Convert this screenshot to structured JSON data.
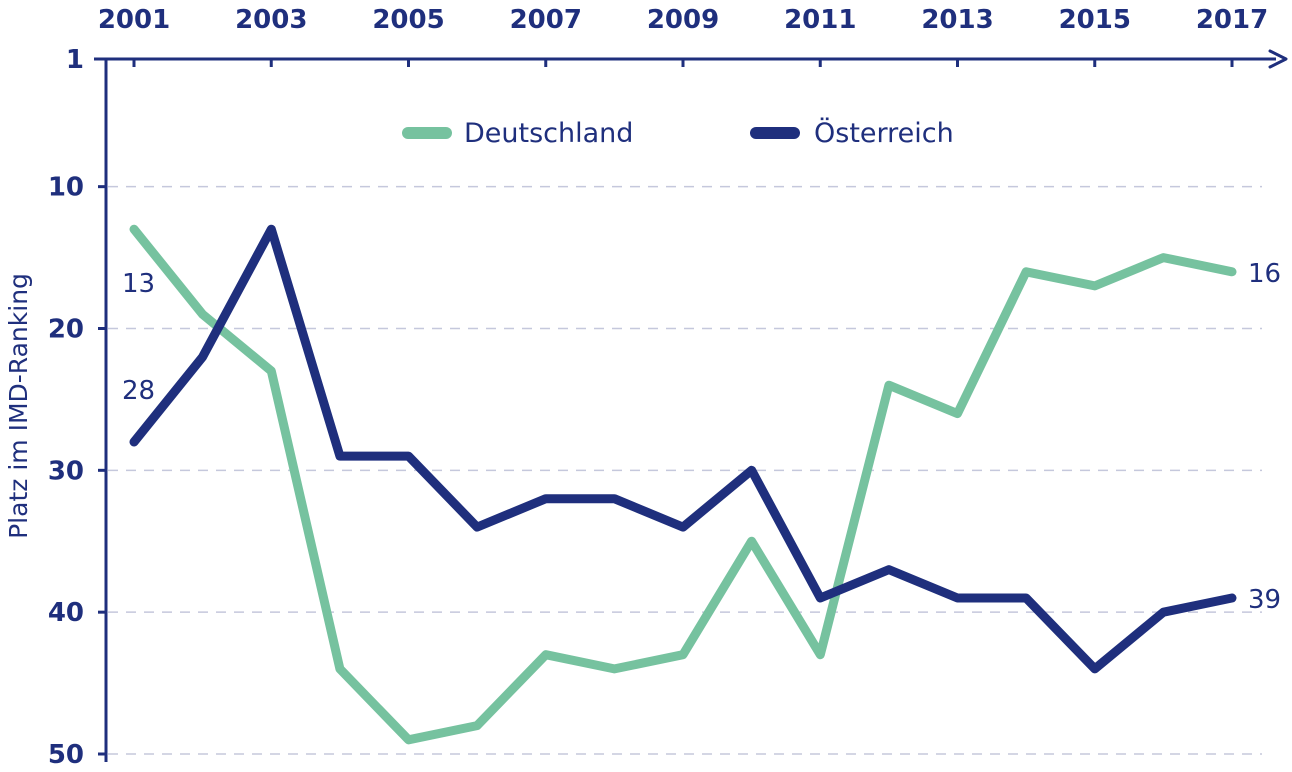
{
  "chart_data": {
    "type": "line",
    "title": "",
    "xlabel": "",
    "ylabel": "Platz im IMD-Ranking",
    "x": [
      2001,
      2002,
      2003,
      2004,
      2005,
      2006,
      2007,
      2008,
      2009,
      2010,
      2011,
      2012,
      2013,
      2014,
      2015,
      2016,
      2017
    ],
    "x_ticks": [
      2001,
      2003,
      2005,
      2007,
      2009,
      2011,
      2013,
      2015,
      2017
    ],
    "xlim": [
      2001,
      2017
    ],
    "y_ticks": [
      1,
      10,
      20,
      30,
      40,
      50
    ],
    "ylim": [
      1,
      50
    ],
    "y_inverted": true,
    "grid": "horizontal-dashed",
    "legend_position": "top-center",
    "series": [
      {
        "name": "Deutschland",
        "color": "#76c29f",
        "values": [
          13,
          19,
          23,
          44,
          49,
          48,
          43,
          44,
          43,
          35,
          43,
          24,
          26,
          16,
          17,
          15,
          16
        ]
      },
      {
        "name": "Österreich",
        "color": "#1f2f7d",
        "values": [
          28,
          22,
          13,
          29,
          29,
          34,
          32,
          32,
          34,
          30,
          39,
          37,
          39,
          39,
          44,
          40,
          39
        ]
      }
    ],
    "annotations": [
      {
        "series": 0,
        "side": "start",
        "text": "13"
      },
      {
        "series": 1,
        "side": "start",
        "text": "28"
      },
      {
        "series": 0,
        "side": "end",
        "text": "16"
      },
      {
        "series": 1,
        "side": "end",
        "text": "39"
      }
    ],
    "text_color": "#1f2f7d",
    "grid_color": "#c5c8dc"
  }
}
